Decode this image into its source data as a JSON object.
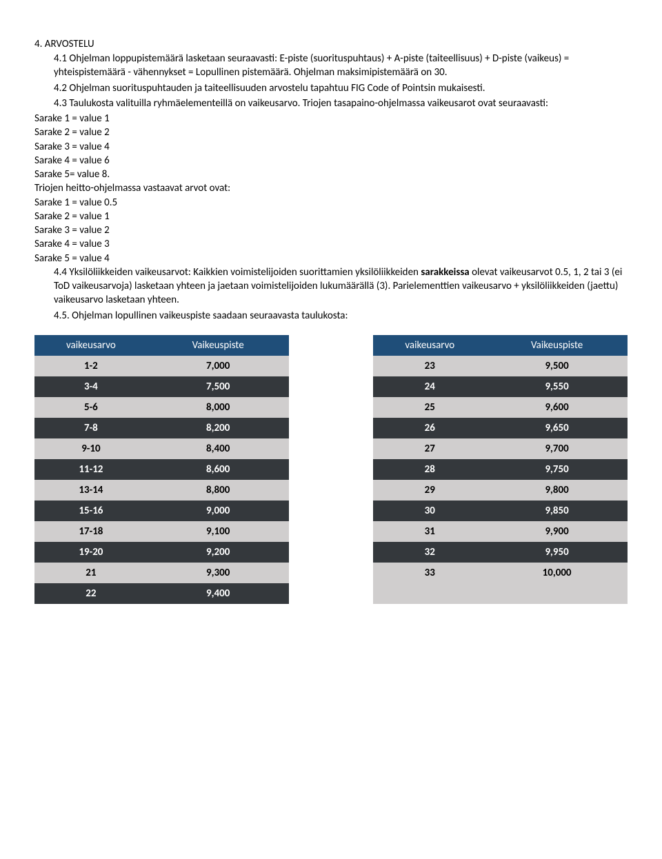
{
  "heading": "4. ARVOSTELU",
  "p41": "4.1 Ohjelman loppupistemäärä lasketaan seuraavasti: E-piste (suorituspuhtaus) + A-piste (taiteellisuus) + D-piste (vaikeus) = yhteispistemäärä - vähennykset = Lopullinen pistemäärä. Ohjelman maksimipistemäärä on 30.",
  "p42": "4.2 Ohjelman suorituspuhtauden ja taiteellisuuden arvostelu tapahtuu FIG Code of Pointsin mukaisesti.",
  "p43_a": "4.3 Taulukosta valituilla ryhmäelementeillä on vaikeusarvo. Triojen tasapaino-ohjelmassa vaikeusarot ovat seuraavasti:",
  "tasapaino": {
    "s1": "Sarake 1 = value 1",
    "s2": "Sarake 2 = value 2",
    "s3": "Sarake 3 = value 4",
    "s4": "Sarake 4 = value 6",
    "s5": "Sarake 5= value 8."
  },
  "heitto_intro": "Triojen heitto-ohjelmassa vastaavat arvot ovat:",
  "heitto": {
    "s1": "Sarake 1 = value 0.5",
    "s2": "Sarake 2 = value 1",
    "s3": "Sarake 3 = value 2",
    "s4": "Sarake 4 = value 3",
    "s5": "Sarake 5 = value 4"
  },
  "p44_pre": " 4.4 Yksilöliikkeiden vaikeusarvot: Kaikkien voimistelijoiden suorittamien yksilöliikkeiden ",
  "p44_bold": "sarakkeissa",
  "p44_post": " olevat vaikeusarvot 0.5, 1, 2 tai 3 (ei ToD vaikeusarvoja) lasketaan yhteen ja jaetaan voimistelijoiden lukumäärällä (3). Parielementtien vaikeusarvo + yksilöliikkeiden (jaettu) vaikeusarvo lasketaan yhteen.",
  "p45": " 4.5.   Ohjelman lopullinen vaikeuspiste saadaan seuraavasta taulukosta:",
  "table": {
    "headers": {
      "a": "vaikeusarvo",
      "b": "Vaikeuspiste",
      "c": "vaikeusarvo",
      "d": "Vaikeuspiste"
    },
    "rows": [
      {
        "a": "1-2",
        "b": "7,000",
        "c": "23",
        "d": "9,500",
        "cls": "light"
      },
      {
        "a": "3-4",
        "b": "7,500",
        "c": "24",
        "d": "9,550",
        "cls": "dark"
      },
      {
        "a": "5-6",
        "b": "8,000",
        "c": "25",
        "d": "9,600",
        "cls": "light"
      },
      {
        "a": "7-8",
        "b": "8,200",
        "c": "26",
        "d": "9,650",
        "cls": "dark"
      },
      {
        "a": "9-10",
        "b": "8,400",
        "c": "27",
        "d": "9,700",
        "cls": "light"
      },
      {
        "a": "11-12",
        "b": "8,600",
        "c": "28",
        "d": "9,750",
        "cls": "dark"
      },
      {
        "a": "13-14",
        "b": "8,800",
        "c": "29",
        "d": "9,800",
        "cls": "light"
      },
      {
        "a": "15-16",
        "b": "9,000",
        "c": "30",
        "d": "9,850",
        "cls": "dark"
      },
      {
        "a": "17-18",
        "b": "9,100",
        "c": "31",
        "d": "9,900",
        "cls": "light"
      },
      {
        "a": "19-20",
        "b": "9,200",
        "c": "32",
        "d": "9,950",
        "cls": "dark"
      },
      {
        "a": "21",
        "b": "9,300",
        "c": "33",
        "d": "10,000",
        "cls": "light"
      },
      {
        "a": "22",
        "b": "9,400",
        "c": "",
        "d": "",
        "cls": "dark"
      }
    ],
    "colors": {
      "header_bg": "#1f4e79",
      "header_fg": "#ffffff",
      "dark_bg": "#34383c",
      "dark_fg": "#ffffff",
      "light_bg": "#d0cece",
      "light_fg": "#000000"
    }
  }
}
